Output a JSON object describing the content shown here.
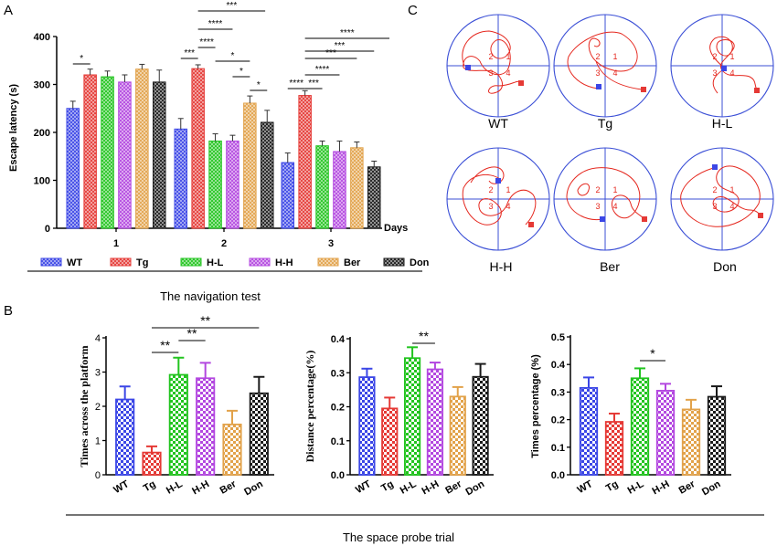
{
  "panel_labels": {
    "a": "A",
    "b": "B",
    "c": "C"
  },
  "colors": {
    "WT": "#3b46e6",
    "Tg": "#e53935",
    "H-L": "#22c41f",
    "H-H": "#b347e0",
    "Ber": "#e2a24a",
    "Don": "#1a1a1a",
    "track": "#e5281f",
    "circle": "#3b4fd6"
  },
  "chart_data": [
    {
      "id": "A",
      "type": "bar",
      "ylabel": "Escape latency (s)",
      "xlabel": "Days",
      "caption": "The navigation test",
      "categories": [
        "1",
        "2",
        "3"
      ],
      "ylim": [
        0,
        400
      ],
      "yticks": [
        "0",
        "100",
        "200",
        "300",
        "400"
      ],
      "series": [
        {
          "name": "WT",
          "values": [
            250,
            207,
            137
          ],
          "errors": [
            15,
            22,
            20
          ]
        },
        {
          "name": "Tg",
          "values": [
            320,
            333,
            277
          ],
          "errors": [
            12,
            8,
            10
          ]
        },
        {
          "name": "H-L",
          "values": [
            316,
            182,
            172
          ],
          "errors": [
            12,
            15,
            10
          ]
        },
        {
          "name": "H-H",
          "values": [
            305,
            182,
            160
          ],
          "errors": [
            15,
            12,
            22
          ]
        },
        {
          "name": "Ber",
          "values": [
            332,
            261,
            168
          ],
          "errors": [
            10,
            15,
            12
          ]
        },
        {
          "name": "Don",
          "values": [
            305,
            221,
            128
          ],
          "errors": [
            25,
            25,
            12
          ]
        }
      ],
      "significance": [
        {
          "label": "*"
        },
        {
          "label": "***"
        },
        {
          "label": "****"
        },
        {
          "label": "****"
        },
        {
          "label": "***"
        },
        {
          "label": "*"
        },
        {
          "label": "*"
        },
        {
          "label": "*"
        },
        {
          "label": "****"
        },
        {
          "label": "***"
        },
        {
          "label": "****"
        },
        {
          "label": "***"
        },
        {
          "label": "***"
        },
        {
          "label": "****"
        }
      ]
    },
    {
      "id": "B1",
      "type": "bar",
      "ylabel": "Times across the platform",
      "categories": [
        "WT",
        "Tg",
        "H-L",
        "H-H",
        "Ber",
        "Don"
      ],
      "values": [
        2.2,
        0.65,
        2.92,
        2.82,
        1.47,
        2.38
      ],
      "errors": [
        0.38,
        0.18,
        0.5,
        0.45,
        0.4,
        0.48
      ],
      "ylim": [
        0,
        4
      ],
      "yticks": [
        "0",
        "1",
        "2",
        "3",
        "4"
      ],
      "significance": [
        {
          "label": "**"
        },
        {
          "label": "**"
        },
        {
          "label": "**"
        }
      ]
    },
    {
      "id": "B2",
      "type": "bar",
      "ylabel": "Distance percentage(%)",
      "categories": [
        "WT",
        "Tg",
        "H-L",
        "H-H",
        "Ber",
        "Don"
      ],
      "values": [
        0.287,
        0.195,
        0.343,
        0.31,
        0.23,
        0.288
      ],
      "errors": [
        0.025,
        0.032,
        0.032,
        0.02,
        0.028,
        0.038
      ],
      "ylim": [
        0,
        0.4
      ],
      "yticks": [
        "0.0",
        "0.1",
        "0.2",
        "0.3",
        "0.4"
      ],
      "significance": [
        {
          "label": "**"
        }
      ]
    },
    {
      "id": "B3",
      "type": "bar",
      "ylabel": "Times percentage (%)",
      "categories": [
        "WT",
        "Tg",
        "H-L",
        "H-H",
        "Ber",
        "Don"
      ],
      "values": [
        0.315,
        0.192,
        0.35,
        0.305,
        0.237,
        0.283
      ],
      "errors": [
        0.038,
        0.03,
        0.036,
        0.025,
        0.035,
        0.038
      ],
      "ylim": [
        0,
        0.5
      ],
      "yticks": [
        "0.0",
        "0.1",
        "0.2",
        "0.3",
        "0.4",
        "0.5"
      ],
      "significance": [
        {
          "label": "*"
        }
      ]
    }
  ],
  "panel_b_caption": "The space probe trial",
  "tracks": [
    {
      "label": "WT",
      "quadrants": [
        "2",
        "1",
        "3",
        "4"
      ]
    },
    {
      "label": "Tg",
      "quadrants": [
        "2",
        "1",
        "3",
        "4"
      ]
    },
    {
      "label": "H-L",
      "quadrants": [
        "2",
        "1",
        "3",
        "4"
      ]
    },
    {
      "label": "H-H",
      "quadrants": [
        "2",
        "1",
        "3",
        "4"
      ]
    },
    {
      "label": "Ber",
      "quadrants": [
        "2",
        "1",
        "3",
        "4"
      ]
    },
    {
      "label": "Don",
      "quadrants": [
        "2",
        "1",
        "3",
        "4"
      ]
    }
  ]
}
